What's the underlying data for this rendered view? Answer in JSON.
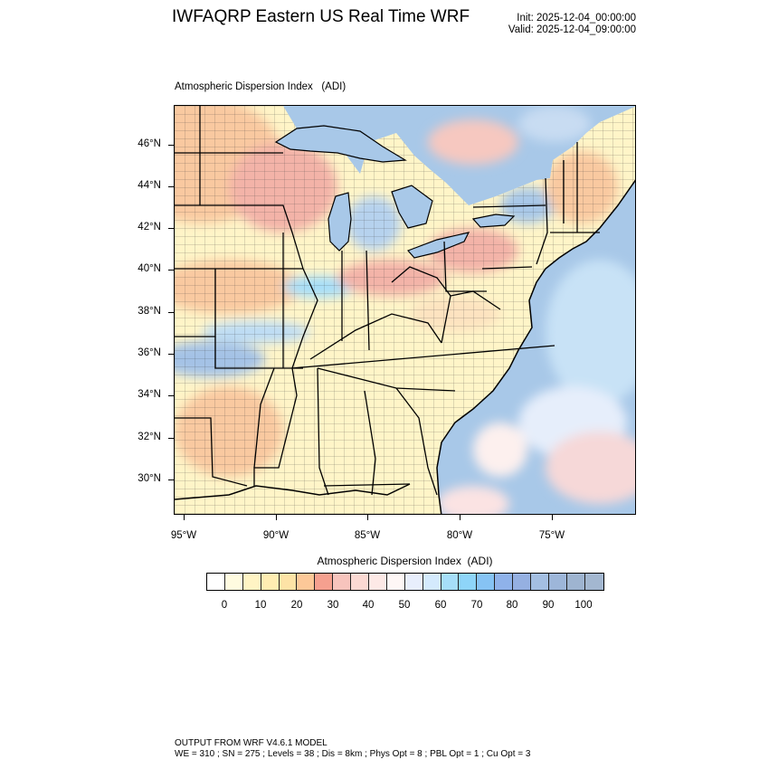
{
  "header": {
    "title": "IWFAQRP Eastern US Real Time WRF",
    "init": "Init: 2025-12-04_00:00:00",
    "valid": "Valid: 2025-12-04_09:00:00"
  },
  "panel": {
    "title": "Atmospheric Dispersion Index   (ADI)"
  },
  "map": {
    "lat_labels": [
      "46°N",
      "44°N",
      "42°N",
      "40°N",
      "38°N",
      "36°N",
      "34°N",
      "32°N",
      "30°N"
    ],
    "lon_labels": [
      "95°W",
      "90°W",
      "85°W",
      "80°W",
      "75°W"
    ],
    "colors": {
      "water_high": "#a8c8e8",
      "land_low": "#fff5c8",
      "land_mid": "#f9c9a0",
      "land_salmon": "#f3b3a8",
      "state_line": "#000000",
      "county_line": "#222222"
    }
  },
  "colorbar": {
    "title": "Atmospheric Dispersion Index  (ADI)",
    "tick_labels": [
      "0",
      "10",
      "20",
      "30",
      "40",
      "50",
      "60",
      "70",
      "80",
      "90",
      "100"
    ],
    "colors": [
      "#ffffff",
      "#fffbe0",
      "#fff4c4",
      "#ffedb2",
      "#fde3a6",
      "#fcc898",
      "#f5a08f",
      "#f7c4bd",
      "#fbd9d3",
      "#fde9e6",
      "#fef7f6",
      "#e8eefc",
      "#d4eafd",
      "#a6def9",
      "#8ed5f9",
      "#86c3f4",
      "#8fb2ea",
      "#95b0e1",
      "#a4bfe2",
      "#9db6d9",
      "#9eb4d0",
      "#a3b7d0"
    ]
  },
  "footer": {
    "line1": "OUTPUT FROM WRF V4.6.1 MODEL",
    "line2": "WE = 310 ; SN = 275 ; Levels = 38 ; Dis = 8km ; Phys Opt = 8 ; PBL Opt = 1 ; Cu Opt = 3"
  }
}
